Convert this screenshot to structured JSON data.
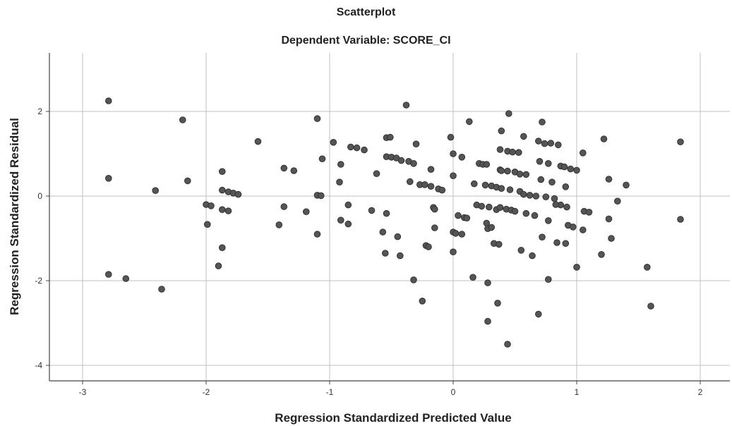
{
  "header": {
    "title": "Scatterplot",
    "subtitle": "Dependent Variable: SCORE_CI"
  },
  "colors": {
    "point_fill": "#555555",
    "point_stroke": "#333333",
    "grid": "#c0c0c0",
    "axis": "#444444"
  },
  "chart_data": {
    "type": "scatter",
    "title": "Scatterplot",
    "subtitle": "Dependent Variable: SCORE_CI",
    "xlabel": "Regression Standardized Predicted Value",
    "ylabel": "Regression Standardized Residual",
    "xlim": [
      -3.3,
      2.25
    ],
    "ylim": [
      -4.4,
      3.4
    ],
    "xticks": [
      -3,
      -2,
      -1,
      0,
      1,
      2
    ],
    "xtick_labels": [
      "-3",
      "-2",
      "-1",
      "0",
      "1",
      "2"
    ],
    "yticks": [
      -4,
      -2,
      0,
      2
    ],
    "ytick_labels": [
      "-4",
      "-2",
      "0",
      "2"
    ],
    "grid": true,
    "points": [
      [
        -2.79,
        2.25
      ],
      [
        -2.79,
        0.42
      ],
      [
        -2.79,
        -1.85
      ],
      [
        -2.65,
        -1.95
      ],
      [
        -2.41,
        0.13
      ],
      [
        -2.36,
        -2.2
      ],
      [
        -2.19,
        1.8
      ],
      [
        -2.15,
        0.36
      ],
      [
        -2.0,
        -0.2
      ],
      [
        -1.96,
        -0.23
      ],
      [
        -1.99,
        -0.67
      ],
      [
        -1.9,
        -1.65
      ],
      [
        -1.87,
        0.58
      ],
      [
        -1.87,
        0.14
      ],
      [
        -1.87,
        -0.32
      ],
      [
        -1.87,
        -1.22
      ],
      [
        -1.82,
        0.1
      ],
      [
        -1.82,
        -0.35
      ],
      [
        -1.78,
        0.07
      ],
      [
        -1.74,
        0.04
      ],
      [
        -1.58,
        1.29
      ],
      [
        -1.41,
        -0.68
      ],
      [
        -1.37,
        0.66
      ],
      [
        -1.37,
        -0.25
      ],
      [
        -1.29,
        0.6
      ],
      [
        -1.19,
        -0.37
      ],
      [
        -1.1,
        1.83
      ],
      [
        -1.1,
        0.02
      ],
      [
        -1.1,
        -0.9
      ],
      [
        -1.07,
        0.01
      ],
      [
        -1.06,
        0.88
      ],
      [
        -0.97,
        1.27
      ],
      [
        -0.92,
        0.33
      ],
      [
        -0.91,
        0.75
      ],
      [
        -0.91,
        -0.57
      ],
      [
        -0.85,
        -0.21
      ],
      [
        -0.85,
        -0.66
      ],
      [
        -0.83,
        1.16
      ],
      [
        -0.78,
        1.14
      ],
      [
        -0.72,
        1.09
      ],
      [
        -0.66,
        -0.34
      ],
      [
        -0.62,
        0.53
      ],
      [
        -0.57,
        -0.85
      ],
      [
        -0.55,
        -1.35
      ],
      [
        -0.54,
        1.38
      ],
      [
        -0.54,
        0.93
      ],
      [
        -0.54,
        -0.41
      ],
      [
        -0.51,
        1.39
      ],
      [
        -0.5,
        0.92
      ],
      [
        -0.46,
        0.9
      ],
      [
        -0.45,
        -0.96
      ],
      [
        -0.43,
        -1.41
      ],
      [
        -0.42,
        0.84
      ],
      [
        -0.38,
        2.15
      ],
      [
        -0.36,
        0.82
      ],
      [
        -0.35,
        0.34
      ],
      [
        -0.32,
        0.77
      ],
      [
        -0.32,
        -1.98
      ],
      [
        -0.3,
        1.23
      ],
      [
        -0.27,
        0.27
      ],
      [
        -0.25,
        -2.48
      ],
      [
        -0.23,
        0.27
      ],
      [
        -0.22,
        -1.17
      ],
      [
        -0.2,
        -1.2
      ],
      [
        -0.18,
        0.63
      ],
      [
        -0.18,
        0.23
      ],
      [
        -0.16,
        -0.27
      ],
      [
        -0.15,
        -0.31
      ],
      [
        -0.15,
        -0.75
      ],
      [
        -0.12,
        0.17
      ],
      [
        -0.09,
        0.14
      ],
      [
        -0.02,
        1.39
      ],
      [
        0.0,
        1.0
      ],
      [
        0.0,
        0.48
      ],
      [
        0.0,
        -1.32
      ],
      [
        0.0,
        -0.85
      ],
      [
        0.02,
        -0.88
      ],
      [
        0.04,
        -0.46
      ],
      [
        0.07,
        0.92
      ],
      [
        0.07,
        -0.9
      ],
      [
        0.09,
        -0.51
      ],
      [
        0.11,
        -0.52
      ],
      [
        0.13,
        1.76
      ],
      [
        0.16,
        -1.92
      ],
      [
        0.17,
        0.29
      ],
      [
        0.19,
        -0.21
      ],
      [
        0.21,
        0.77
      ],
      [
        0.23,
        -0.24
      ],
      [
        0.24,
        0.75
      ],
      [
        0.26,
        0.26
      ],
      [
        0.27,
        0.75
      ],
      [
        0.27,
        -0.64
      ],
      [
        0.28,
        -0.77
      ],
      [
        0.28,
        -2.05
      ],
      [
        0.28,
        -2.96
      ],
      [
        0.29,
        -0.26
      ],
      [
        0.31,
        0.24
      ],
      [
        0.31,
        -0.74
      ],
      [
        0.33,
        -1.12
      ],
      [
        0.35,
        0.21
      ],
      [
        0.35,
        -0.32
      ],
      [
        0.36,
        -2.53
      ],
      [
        0.37,
        -1.14
      ],
      [
        0.38,
        1.1
      ],
      [
        0.38,
        0.62
      ],
      [
        0.38,
        -0.27
      ],
      [
        0.39,
        1.54
      ],
      [
        0.39,
        0.6
      ],
      [
        0.39,
        0.18
      ],
      [
        0.43,
        -0.31
      ],
      [
        0.44,
        1.06
      ],
      [
        0.44,
        0.59
      ],
      [
        0.44,
        -3.5
      ],
      [
        0.45,
        1.95
      ],
      [
        0.46,
        0.15
      ],
      [
        0.47,
        -0.33
      ],
      [
        0.48,
        1.04
      ],
      [
        0.5,
        0.57
      ],
      [
        0.5,
        -0.36
      ],
      [
        0.53,
        1.03
      ],
      [
        0.54,
        0.52
      ],
      [
        0.54,
        0.11
      ],
      [
        0.55,
        -1.28
      ],
      [
        0.57,
        1.41
      ],
      [
        0.57,
        0.04
      ],
      [
        0.59,
        0.51
      ],
      [
        0.59,
        -0.41
      ],
      [
        0.62,
        0.02
      ],
      [
        0.64,
        -1.41
      ],
      [
        0.66,
        -0.46
      ],
      [
        0.67,
        0.0
      ],
      [
        0.69,
        1.3
      ],
      [
        0.69,
        -2.79
      ],
      [
        0.7,
        0.82
      ],
      [
        0.71,
        0.39
      ],
      [
        0.72,
        1.75
      ],
      [
        0.72,
        -0.97
      ],
      [
        0.74,
        1.24
      ],
      [
        0.75,
        -0.02
      ],
      [
        0.77,
        0.77
      ],
      [
        0.77,
        -1.97
      ],
      [
        0.77,
        -0.58
      ],
      [
        0.79,
        1.25
      ],
      [
        0.8,
        0.33
      ],
      [
        0.82,
        -0.06
      ],
      [
        0.84,
        -1.1
      ],
      [
        0.85,
        1.21
      ],
      [
        0.87,
        0.71
      ],
      [
        0.87,
        -0.21
      ],
      [
        0.9,
        0.69
      ],
      [
        0.91,
        -1.12
      ],
      [
        0.91,
        0.22
      ],
      [
        0.92,
        -0.26
      ],
      [
        0.93,
        -0.69
      ],
      [
        0.95,
        0.64
      ],
      [
        0.97,
        -0.73
      ],
      [
        1.0,
        0.61
      ],
      [
        1.0,
        -1.68
      ],
      [
        1.05,
        1.02
      ],
      [
        1.06,
        -0.36
      ],
      [
        1.1,
        -0.38
      ],
      [
        1.2,
        -1.38
      ],
      [
        1.22,
        1.35
      ],
      [
        1.26,
        0.4
      ],
      [
        1.26,
        -0.54
      ],
      [
        1.28,
        -1.0
      ],
      [
        1.33,
        -0.12
      ],
      [
        1.4,
        0.26
      ],
      [
        1.57,
        -1.68
      ],
      [
        1.6,
        -2.6
      ],
      [
        1.84,
        1.28
      ],
      [
        1.84,
        -0.55
      ],
      [
        1.05,
        -0.8
      ],
      [
        0.83,
        -0.2
      ]
    ]
  }
}
